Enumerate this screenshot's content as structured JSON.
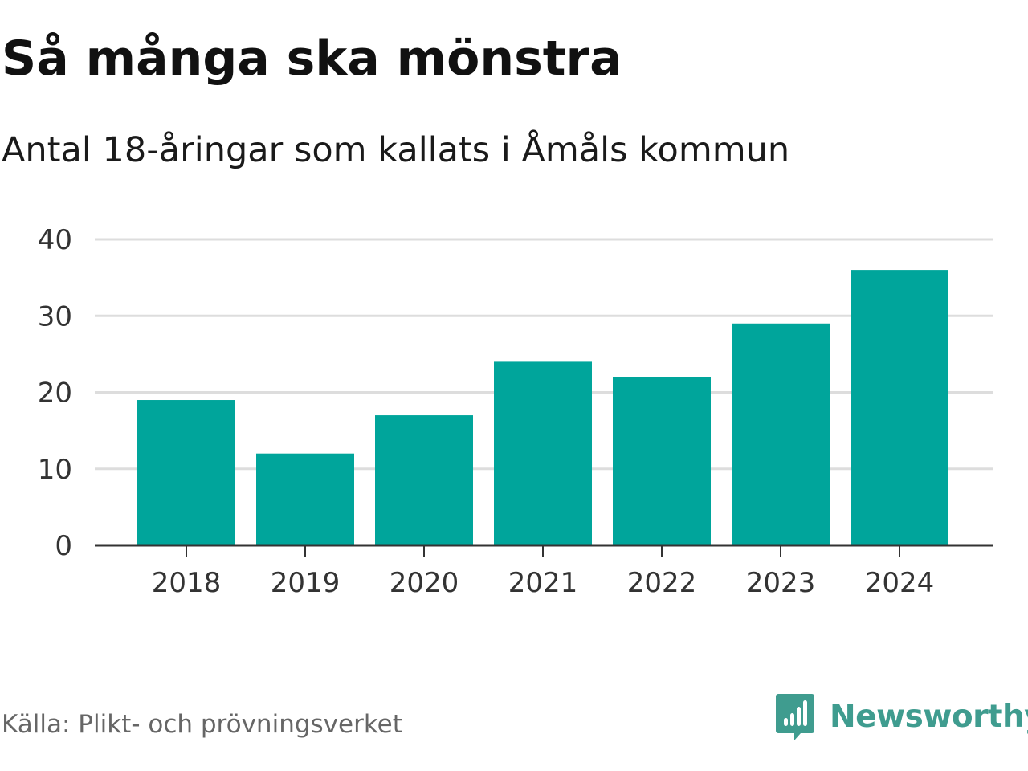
{
  "header": {
    "title": "Så många ska mönstra",
    "subtitle": "Antal 18-åringar som kallats i Åmåls kommun"
  },
  "footer": {
    "source": "Källa: Plikt- och prövningsverket",
    "brand": "Newsworthy",
    "brand_icon": "newsworthy-logo-icon"
  },
  "colors": {
    "bar": "#00A59B",
    "grid": "#DDDDDD",
    "axis": "#333333",
    "brand": "#3F9C8F"
  },
  "chart_data": {
    "type": "bar",
    "title": "Så många ska mönstra",
    "subtitle": "Antal 18-åringar som kallats i Åmåls kommun",
    "xlabel": "",
    "ylabel": "",
    "categories": [
      "2018",
      "2019",
      "2020",
      "2021",
      "2022",
      "2023",
      "2024"
    ],
    "values": [
      19,
      12,
      17,
      24,
      22,
      29,
      36
    ],
    "ylim": [
      0,
      40
    ],
    "yticks": [
      "0",
      "10",
      "20",
      "30",
      "40"
    ],
    "ytick_values": [
      0,
      10,
      20,
      30,
      40
    ],
    "grid": true,
    "legend": "none"
  }
}
